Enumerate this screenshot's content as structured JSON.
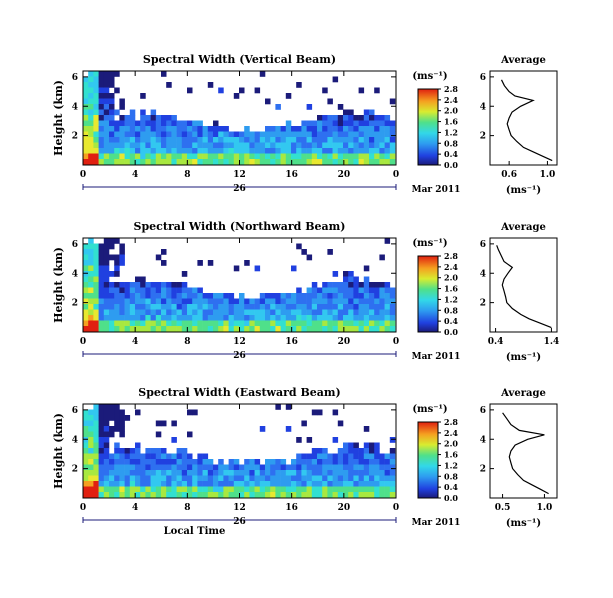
{
  "chart_data": [
    {
      "type": "heatmap",
      "title": "Spectral Width (Vertical Beam)",
      "ylabel": "Height (km)",
      "xlabel": "",
      "x_ticks": [
        "0",
        "4",
        "8",
        "12",
        "16",
        "20",
        "0"
      ],
      "y_ticks": [
        "2",
        "4",
        "6"
      ],
      "date_label": "26",
      "date_right": "Mar 2011",
      "colorbar": {
        "unit": "(ms⁻¹)",
        "ticks": [
          "0.0",
          "0.4",
          "0.8",
          "1.2",
          "1.6",
          "2.0",
          "2.4",
          "2.8"
        ]
      },
      "average": {
        "title": "Average",
        "xlabel": "(ms⁻¹)",
        "x_ticks": [
          "0.6",
          "1.0"
        ],
        "y_ticks": [
          "2",
          "4",
          "6"
        ],
        "xlim": [
          0.4,
          1.1
        ],
        "profile": [
          [
            1.05,
            0.3
          ],
          [
            0.95,
            0.6
          ],
          [
            0.85,
            0.9
          ],
          [
            0.75,
            1.2
          ],
          [
            0.68,
            1.6
          ],
          [
            0.62,
            2.0
          ],
          [
            0.6,
            2.4
          ],
          [
            0.58,
            2.8
          ],
          [
            0.6,
            3.2
          ],
          [
            0.63,
            3.6
          ],
          [
            0.72,
            4.0
          ],
          [
            0.85,
            4.4
          ],
          [
            0.66,
            4.7
          ],
          [
            0.6,
            5.0
          ],
          [
            0.55,
            5.4
          ],
          [
            0.52,
            5.8
          ]
        ]
      }
    },
    {
      "type": "heatmap",
      "title": "Spectral Width (Northward Beam)",
      "ylabel": "Height (km)",
      "xlabel": "",
      "x_ticks": [
        "0",
        "4",
        "8",
        "12",
        "16",
        "20",
        "0"
      ],
      "y_ticks": [
        "2",
        "4",
        "6"
      ],
      "date_label": "26",
      "date_right": "Mar 2011",
      "colorbar": {
        "unit": "(ms⁻¹)",
        "ticks": [
          "0.0",
          "0.4",
          "0.8",
          "1.2",
          "1.6",
          "2.0",
          "2.4",
          "2.8"
        ]
      },
      "average": {
        "title": "Average",
        "xlabel": "(ms⁻¹)",
        "x_ticks": [
          "0.4",
          "1.4"
        ],
        "y_ticks": [
          "2",
          "4",
          "6"
        ],
        "xlim": [
          0.3,
          1.5
        ],
        "profile": [
          [
            1.4,
            0.3
          ],
          [
            1.2,
            0.6
          ],
          [
            1.0,
            0.9
          ],
          [
            0.85,
            1.2
          ],
          [
            0.7,
            1.6
          ],
          [
            0.6,
            2.0
          ],
          [
            0.58,
            2.4
          ],
          [
            0.55,
            2.8
          ],
          [
            0.52,
            3.2
          ],
          [
            0.55,
            3.6
          ],
          [
            0.62,
            4.0
          ],
          [
            0.7,
            4.4
          ],
          [
            0.55,
            4.8
          ],
          [
            0.5,
            5.2
          ],
          [
            0.45,
            5.6
          ],
          [
            0.42,
            5.9
          ]
        ]
      }
    },
    {
      "type": "heatmap",
      "title": "Spectral Width (Eastward Beam)",
      "ylabel": "Height (km)",
      "xlabel": "Local Time",
      "x_ticks": [
        "0",
        "4",
        "8",
        "12",
        "16",
        "20",
        "0"
      ],
      "y_ticks": [
        "2",
        "4",
        "6"
      ],
      "date_label": "26",
      "date_right": "Mar 2011",
      "colorbar": {
        "unit": "(ms⁻¹)",
        "ticks": [
          "0.0",
          "0.4",
          "0.8",
          "1.2",
          "1.6",
          "2.0",
          "2.4",
          "2.8"
        ]
      },
      "average": {
        "title": "Average",
        "xlabel": "(ms⁻¹)",
        "x_ticks": [
          "0.5",
          "1.0"
        ],
        "y_ticks": [
          "2",
          "4",
          "6"
        ],
        "xlim": [
          0.35,
          1.15
        ],
        "profile": [
          [
            1.05,
            0.3
          ],
          [
            0.95,
            0.6
          ],
          [
            0.85,
            0.9
          ],
          [
            0.75,
            1.2
          ],
          [
            0.68,
            1.6
          ],
          [
            0.62,
            2.0
          ],
          [
            0.6,
            2.4
          ],
          [
            0.58,
            2.8
          ],
          [
            0.6,
            3.2
          ],
          [
            0.65,
            3.6
          ],
          [
            0.8,
            4.0
          ],
          [
            1.0,
            4.3
          ],
          [
            0.7,
            4.6
          ],
          [
            0.6,
            5.0
          ],
          [
            0.55,
            5.4
          ],
          [
            0.5,
            5.8
          ]
        ]
      }
    }
  ]
}
